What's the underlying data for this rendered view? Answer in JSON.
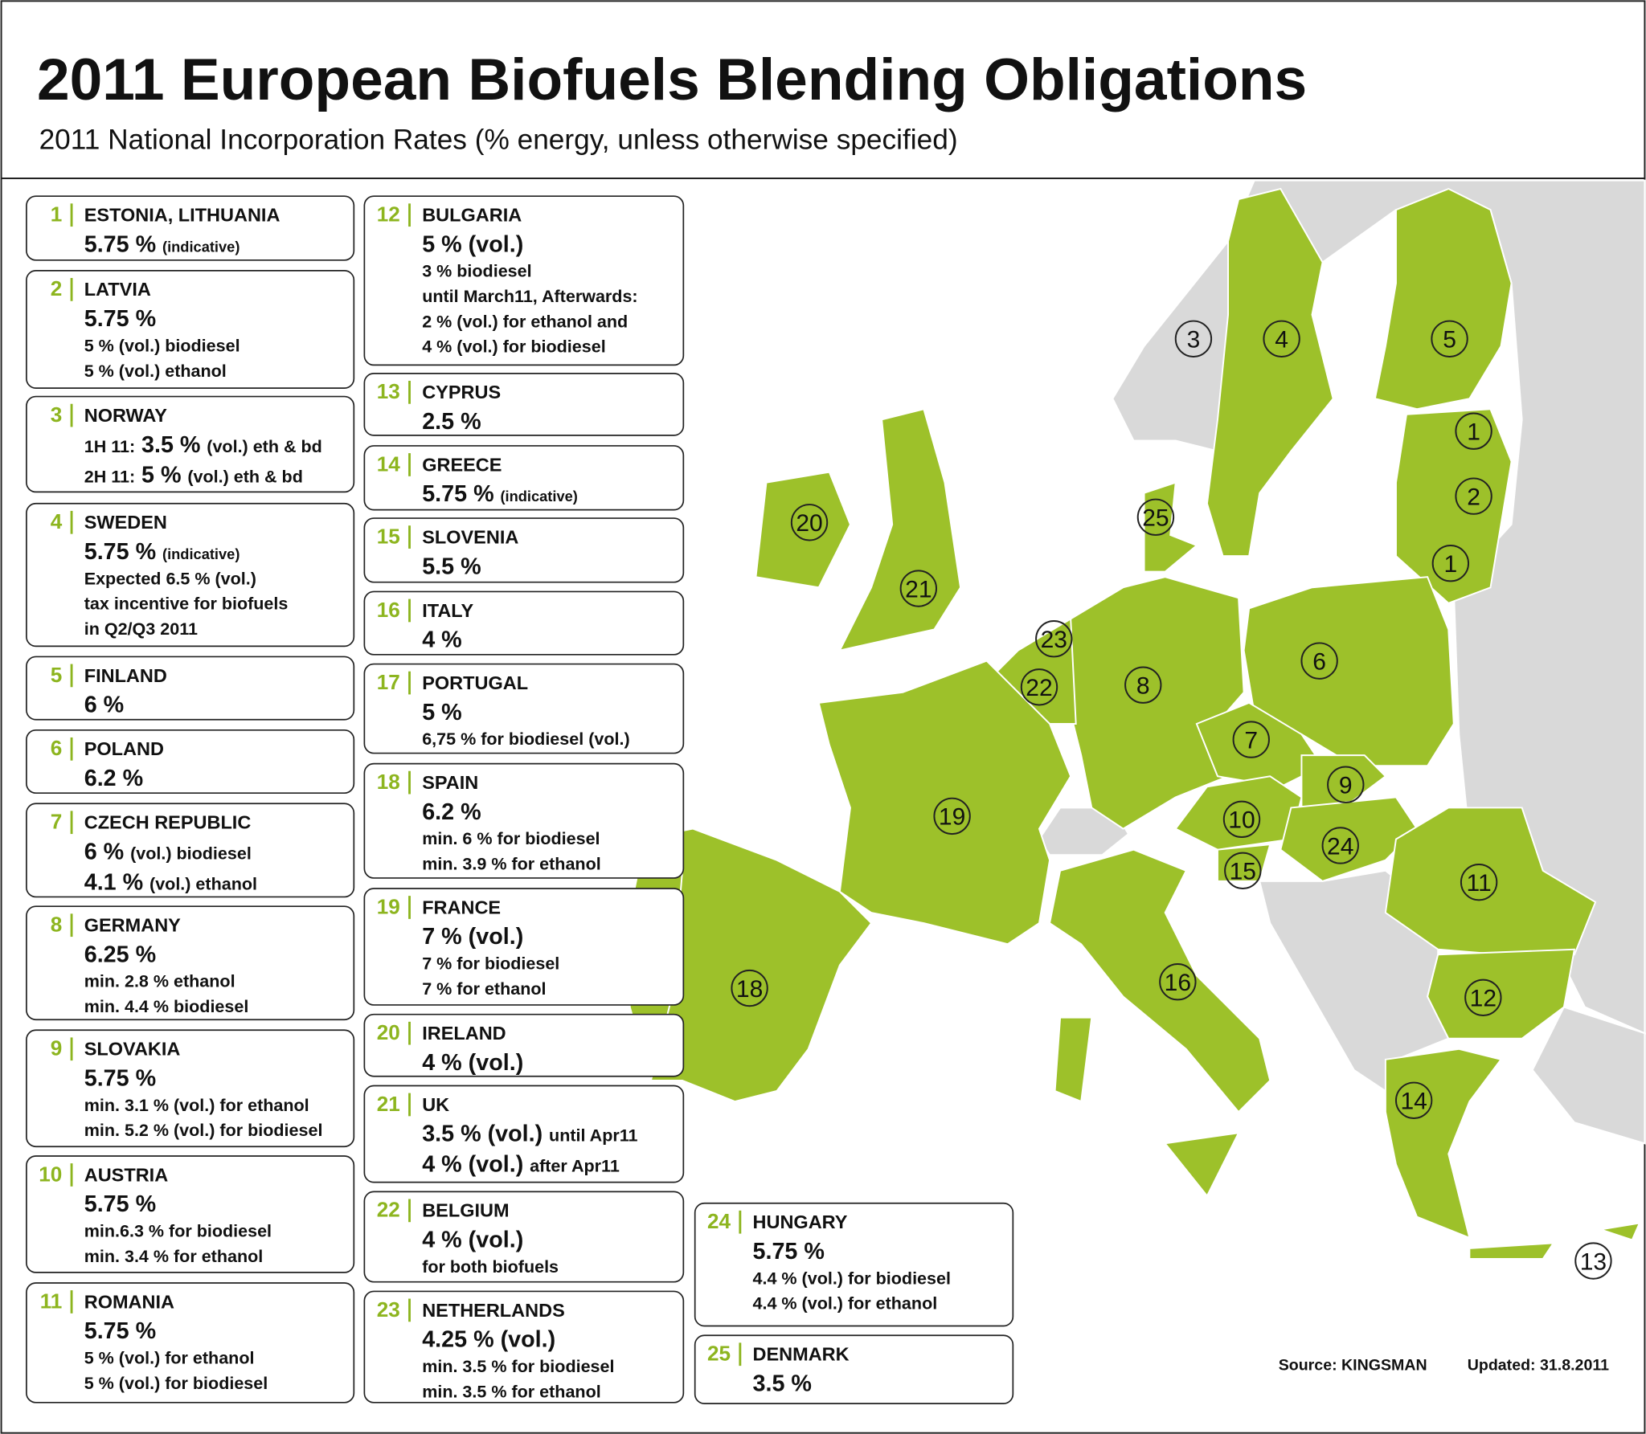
{
  "header": {
    "title": "2011 European Biofuels Blending Obligations",
    "subtitle": "2011 National Incorporation Rates (% energy, unless otherwise specified)"
  },
  "entries": [
    {
      "num": "1",
      "name": "ESTONIA, LITHUANIA",
      "lines": [
        [
          {
            "big": "5.75 %"
          },
          {
            "small": "(indicative)"
          }
        ]
      ]
    },
    {
      "num": "2",
      "name": "LATVIA",
      "lines": [
        [
          {
            "big": "5.75 %"
          }
        ],
        [
          "5 % (vol.) biodiesel"
        ],
        [
          "5 % (vol.) ethanol"
        ]
      ]
    },
    {
      "num": "3",
      "name": "NORWAY",
      "lines": [
        [
          "1H 11:",
          {
            "big": "3.5 %"
          },
          "(vol.) eth & bd"
        ],
        [
          "2H 11:",
          {
            "big": "5 %"
          },
          "(vol.) eth & bd"
        ]
      ]
    },
    {
      "num": "4",
      "name": "SWEDEN",
      "lines": [
        [
          {
            "big": "5.75 %"
          },
          {
            "small": "(indicative)"
          }
        ],
        [
          "Expected 6.5 % (vol.)"
        ],
        [
          "tax incentive for biofuels"
        ],
        [
          "in Q2/Q3 2011"
        ]
      ]
    },
    {
      "num": "5",
      "name": "FINLAND",
      "lines": [
        [
          {
            "big": "6 %"
          }
        ]
      ]
    },
    {
      "num": "6",
      "name": "POLAND",
      "lines": [
        [
          {
            "big": "6.2 %"
          }
        ]
      ]
    },
    {
      "num": "7",
      "name": "CZECH REPUBLIC",
      "lines": [
        [
          {
            "big": "6 %"
          },
          "(vol.) biodiesel"
        ],
        [
          {
            "big": "4.1 %"
          },
          "(vol.) ethanol"
        ]
      ]
    },
    {
      "num": "8",
      "name": "GERMANY",
      "lines": [
        [
          {
            "big": "6.25 %"
          }
        ],
        [
          "min. 2.8 % ethanol"
        ],
        [
          "min. 4.4 % biodiesel"
        ]
      ]
    },
    {
      "num": "9",
      "name": "SLOVAKIA",
      "lines": [
        [
          {
            "big": "5.75 %"
          }
        ],
        [
          "min. 3.1 % (vol.) for ethanol"
        ],
        [
          "min. 5.2 % (vol.) for biodiesel"
        ]
      ]
    },
    {
      "num": "10",
      "name": "AUSTRIA",
      "lines": [
        [
          {
            "big": "5.75 %"
          }
        ],
        [
          "min.6.3 % for biodiesel"
        ],
        [
          "min. 3.4 % for ethanol"
        ]
      ]
    },
    {
      "num": "11",
      "name": "ROMANIA",
      "lines": [
        [
          {
            "big": "5.75 %"
          }
        ],
        [
          "5 % (vol.) for ethanol"
        ],
        [
          "5 % (vol.) for biodiesel"
        ]
      ]
    },
    {
      "num": "12",
      "name": "BULGARIA",
      "lines": [
        [
          {
            "big": "5 % (vol.)"
          }
        ],
        [
          "3 % biodiesel"
        ],
        [
          "until March11, Afterwards:"
        ],
        [
          "2 % (vol.) for ethanol and"
        ],
        [
          "4 % (vol.) for biodiesel"
        ]
      ]
    },
    {
      "num": "13",
      "name": "CYPRUS",
      "lines": [
        [
          {
            "big": "2.5 %"
          }
        ]
      ]
    },
    {
      "num": "14",
      "name": "GREECE",
      "lines": [
        [
          {
            "big": "5.75 %"
          },
          {
            "small": "(indicative)"
          }
        ]
      ]
    },
    {
      "num": "15",
      "name": "SLOVENIA",
      "lines": [
        [
          {
            "big": "5.5 %"
          }
        ]
      ]
    },
    {
      "num": "16",
      "name": "ITALY",
      "lines": [
        [
          {
            "big": "4 %"
          }
        ]
      ]
    },
    {
      "num": "17",
      "name": "PORTUGAL",
      "lines": [
        [
          {
            "big": "5 %"
          }
        ],
        [
          "6,75 % for biodiesel (vol.)"
        ]
      ]
    },
    {
      "num": "18",
      "name": "SPAIN",
      "lines": [
        [
          {
            "big": "6.2 %"
          }
        ],
        [
          "min. 6 % for biodiesel"
        ],
        [
          "min. 3.9 % for ethanol"
        ]
      ]
    },
    {
      "num": "19",
      "name": "FRANCE",
      "lines": [
        [
          {
            "big": "7 % (vol.)"
          }
        ],
        [
          "7 % for biodiesel"
        ],
        [
          "7 % for ethanol"
        ]
      ]
    },
    {
      "num": "20",
      "name": "IRELAND",
      "lines": [
        [
          {
            "big": "4 % (vol.)"
          }
        ]
      ]
    },
    {
      "num": "21",
      "name": "UK",
      "lines": [
        [
          {
            "big": "3.5 % (vol.)"
          },
          "until Apr11"
        ],
        [
          {
            "big": "4 % (vol.)"
          },
          "after Apr11"
        ]
      ]
    },
    {
      "num": "22",
      "name": "BELGIUM",
      "lines": [
        [
          {
            "big": "4 % (vol.)"
          }
        ],
        [
          "for both biofuels"
        ]
      ]
    },
    {
      "num": "23",
      "name": "NETHERLANDS",
      "lines": [
        [
          {
            "big": "4.25 % (vol.)"
          }
        ],
        [
          "min. 3.5 % for biodiesel"
        ],
        [
          "min. 3.5 % for ethanol"
        ]
      ]
    },
    {
      "num": "24",
      "name": "HUNGARY",
      "lines": [
        [
          {
            "big": "5.75 %"
          }
        ],
        [
          "4.4 % (vol.) for biodiesel"
        ],
        [
          "4.4 % (vol.) for ethanol"
        ]
      ]
    },
    {
      "num": "25",
      "name": "DENMARK",
      "lines": [
        [
          {
            "big": "3.5 %"
          }
        ]
      ]
    }
  ],
  "footer": {
    "source": "Source: KINGSMAN",
    "updated": "Updated: 31.8.2011"
  }
}
